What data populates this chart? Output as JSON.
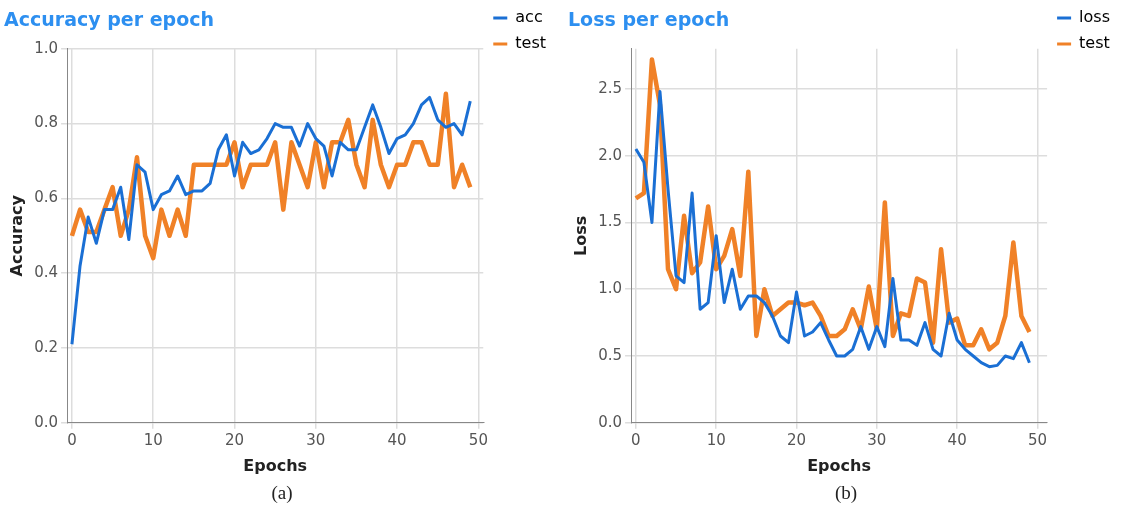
{
  "chart_data": [
    {
      "type": "line",
      "title": "Accuracy per epoch",
      "xlabel": "Epochs",
      "ylabel": "Accuracy",
      "x": [
        0,
        1,
        2,
        3,
        4,
        5,
        6,
        7,
        8,
        9,
        10,
        11,
        12,
        13,
        14,
        15,
        16,
        17,
        18,
        19,
        20,
        21,
        22,
        23,
        24,
        25,
        26,
        27,
        28,
        29,
        30,
        31,
        32,
        33,
        34,
        35,
        36,
        37,
        38,
        39,
        40,
        41,
        42,
        43,
        44,
        45,
        46,
        47,
        48,
        49
      ],
      "series": [
        {
          "name": "acc",
          "color": "#1a6fd4",
          "values": [
            0.21,
            0.42,
            0.55,
            0.48,
            0.57,
            0.57,
            0.63,
            0.49,
            0.69,
            0.67,
            0.57,
            0.61,
            0.62,
            0.66,
            0.61,
            0.62,
            0.62,
            0.64,
            0.73,
            0.77,
            0.66,
            0.75,
            0.72,
            0.73,
            0.76,
            0.8,
            0.79,
            0.79,
            0.74,
            0.8,
            0.76,
            0.74,
            0.66,
            0.75,
            0.73,
            0.73,
            0.79,
            0.85,
            0.79,
            0.72,
            0.76,
            0.77,
            0.8,
            0.85,
            0.87,
            0.81,
            0.79,
            0.8,
            0.77,
            0.86
          ]
        },
        {
          "name": "test",
          "color": "#f08127",
          "values": [
            0.5,
            0.57,
            0.51,
            0.51,
            0.57,
            0.63,
            0.5,
            0.57,
            0.71,
            0.5,
            0.44,
            0.57,
            0.5,
            0.57,
            0.5,
            0.69,
            0.69,
            0.69,
            0.69,
            0.69,
            0.75,
            0.63,
            0.69,
            0.69,
            0.69,
            0.75,
            0.57,
            0.75,
            0.69,
            0.63,
            0.75,
            0.63,
            0.75,
            0.75,
            0.81,
            0.69,
            0.63,
            0.81,
            0.69,
            0.63,
            0.69,
            0.69,
            0.75,
            0.75,
            0.69,
            0.69,
            0.88,
            0.63,
            0.69,
            0.63
          ]
        }
      ],
      "xlim": [
        -0.6,
        50.6
      ],
      "xticks": [
        0,
        10,
        20,
        30,
        40,
        50
      ],
      "ylim": [
        0,
        1
      ],
      "yticks": [
        {
          "value": 0,
          "label": "0.0"
        },
        0.2,
        0.4,
        0.6,
        0.8,
        {
          "value": 1,
          "label": "1.0"
        }
      ],
      "grid": true,
      "legend": "right",
      "marker": "none",
      "line_style": "solid",
      "annotations": [
        "(a)"
      ]
    },
    {
      "type": "line",
      "title": "Loss per epoch",
      "xlabel": "Epochs",
      "ylabel": "Loss",
      "x": [
        0,
        1,
        2,
        3,
        4,
        5,
        6,
        7,
        8,
        9,
        10,
        11,
        12,
        13,
        14,
        15,
        16,
        17,
        18,
        19,
        20,
        21,
        22,
        23,
        24,
        25,
        26,
        27,
        28,
        29,
        30,
        31,
        32,
        33,
        34,
        35,
        36,
        37,
        38,
        39,
        40,
        41,
        42,
        43,
        44,
        45,
        46,
        47,
        48,
        49
      ],
      "series": [
        {
          "name": "loss",
          "color": "#1a6fd4",
          "values": [
            2.05,
            1.95,
            1.5,
            2.48,
            1.75,
            1.1,
            1.05,
            1.72,
            0.85,
            0.9,
            1.4,
            0.9,
            1.15,
            0.85,
            0.95,
            0.95,
            0.9,
            0.8,
            0.65,
            0.6,
            0.98,
            0.65,
            0.68,
            0.75,
            0.62,
            0.5,
            0.5,
            0.55,
            0.72,
            0.55,
            0.72,
            0.57,
            1.08,
            0.62,
            0.62,
            0.58,
            0.75,
            0.55,
            0.5,
            0.82,
            0.62,
            0.55,
            0.5,
            0.45,
            0.42,
            0.43,
            0.5,
            0.48,
            0.6,
            0.45
          ]
        },
        {
          "name": "test",
          "color": "#f08127",
          "values": [
            1.68,
            1.72,
            2.72,
            2.38,
            1.15,
            1.0,
            1.55,
            1.12,
            1.2,
            1.62,
            1.15,
            1.25,
            1.45,
            1.1,
            1.88,
            0.65,
            1.0,
            0.8,
            0.85,
            0.9,
            0.9,
            0.88,
            0.9,
            0.8,
            0.65,
            0.65,
            0.7,
            0.85,
            0.7,
            1.02,
            0.7,
            1.65,
            0.65,
            0.82,
            0.8,
            1.08,
            1.05,
            0.6,
            1.3,
            0.75,
            0.78,
            0.58,
            0.58,
            0.7,
            0.55,
            0.6,
            0.8,
            1.35,
            0.8,
            0.68
          ]
        }
      ],
      "xlim": [
        -0.6,
        51.2
      ],
      "xticks": [
        0,
        10,
        20,
        30,
        40,
        50
      ],
      "ylim": [
        0,
        2.8
      ],
      "yticks": [
        {
          "value": 0,
          "label": "0.0"
        },
        0.5,
        {
          "value": 1,
          "label": "1.0"
        },
        1.5,
        {
          "value": 2,
          "label": "2.0"
        },
        2.5
      ],
      "grid": true,
      "legend": "right",
      "marker": "none",
      "line_style": "solid",
      "annotations": [
        "(b)"
      ]
    }
  ]
}
